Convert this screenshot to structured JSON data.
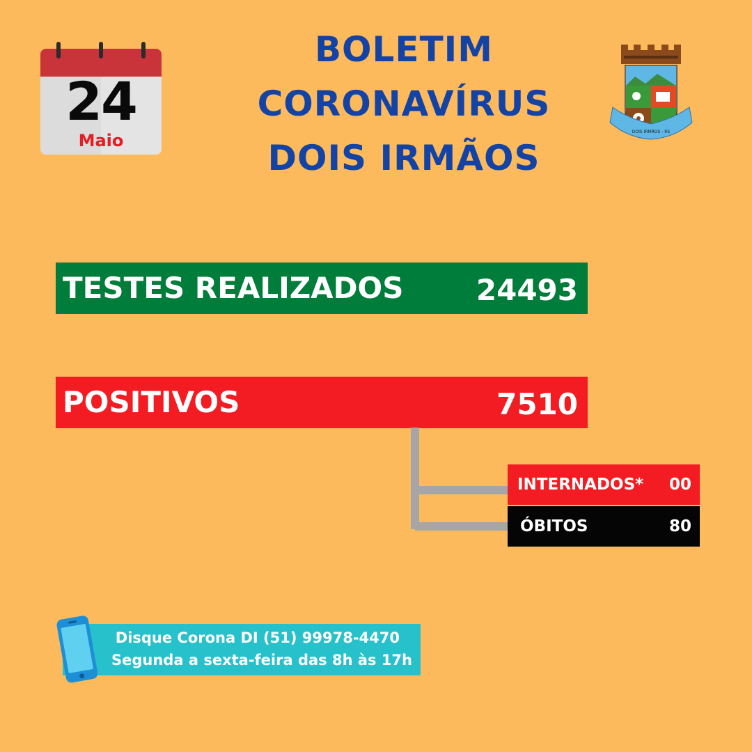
{
  "calendar": {
    "day": "24",
    "month": "Maio"
  },
  "title": {
    "line1": "BOLETIM",
    "line2": "CORONAVÍRUS",
    "line3": "DOIS IRMÃOS"
  },
  "crest": {
    "motto": "28 - 9 - 1959 DOIS IRMÃOS - RS 10 - 9 - 1959"
  },
  "stats": {
    "testes": {
      "label": "TESTES REALIZADOS",
      "value": "24493"
    },
    "positivos": {
      "label": "POSITIVOS",
      "value": "7510"
    },
    "internados": {
      "label": "INTERNADOS*",
      "value": "00"
    },
    "obitos": {
      "label": "ÓBITOS",
      "value": "80"
    }
  },
  "contact": {
    "line1": "Disque Corona DI (51) 99978-4470",
    "line2": "Segunda a sexta-feira das 8h às 17h"
  },
  "colors": {
    "background": "#fdba5c",
    "title": "#1443a6",
    "testes": "#017d3b",
    "positivos": "#f31c22",
    "obitos": "#050505",
    "contact": "#27c1cc"
  }
}
